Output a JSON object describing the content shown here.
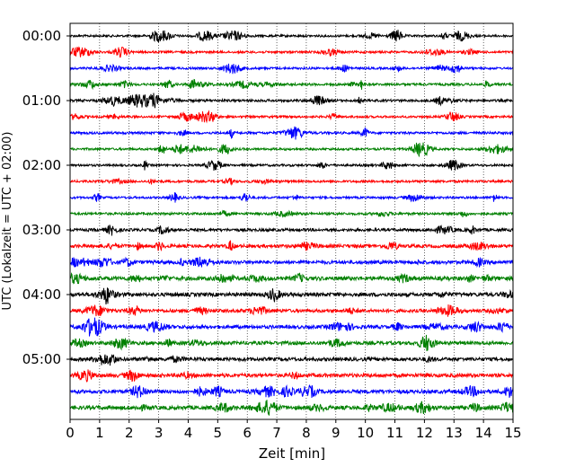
{
  "chart_data": {
    "type": "line",
    "xlabel": "Zeit  [min]",
    "ylabel": "UTC (Lokalzeit = UTC + 02:00)",
    "xlim": [
      0,
      15
    ],
    "xticks": [
      0,
      1,
      2,
      3,
      4,
      5,
      6,
      7,
      8,
      9,
      10,
      11,
      12,
      13,
      14,
      15
    ],
    "ytick_labels": [
      "00:00",
      "01:00",
      "02:00",
      "03:00",
      "04:00",
      "05:00"
    ],
    "trace_interval_min": 15,
    "trace_count": 24,
    "trace_colors": [
      "#000000",
      "#ff0000",
      "#0000ff",
      "#008000"
    ],
    "vertical_grid": "dotted",
    "trace_amplitudes": [
      1,
      1,
      1,
      1.1,
      1.1,
      1,
      1.1,
      1,
      1,
      1.05,
      1,
      1.1,
      1.3,
      1.5,
      1.6,
      1.8,
      1.7,
      1.5,
      1.6,
      1.6,
      1.6,
      1.7,
      1.7,
      1.8
    ]
  }
}
